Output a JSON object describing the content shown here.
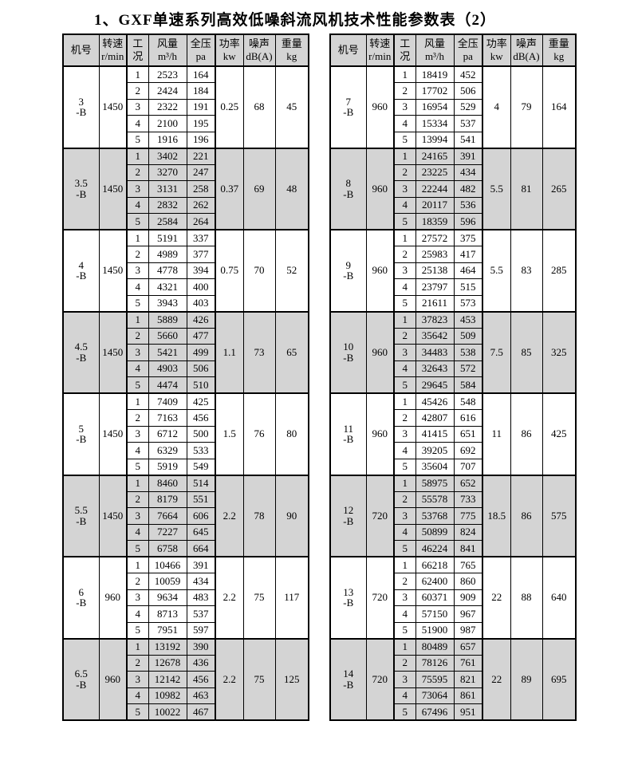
{
  "title": "1、GXF单速系列高效低噪斜流风机技术性能参数表（2）",
  "colors": {
    "page_bg": "#ffffff",
    "header_bg": "#d4d4d4",
    "shaded_group_bg": "#d4d4d4",
    "border": "#000000",
    "text": "#000000"
  },
  "columns": [
    {
      "key": "model",
      "lines": [
        "机号"
      ]
    },
    {
      "key": "speed",
      "lines": [
        "转速",
        "r/min"
      ]
    },
    {
      "key": "condition",
      "lines": [
        "工况"
      ]
    },
    {
      "key": "airflow",
      "lines": [
        "风量",
        "m³/h"
      ]
    },
    {
      "key": "pressure",
      "lines": [
        "全压",
        "pa"
      ]
    },
    {
      "key": "power",
      "lines": [
        "功率",
        "kw"
      ]
    },
    {
      "key": "noise",
      "lines": [
        "噪声",
        "dB(A)"
      ]
    },
    {
      "key": "weight",
      "lines": [
        "重量",
        "kg"
      ]
    }
  ],
  "tables": [
    {
      "name": "left",
      "groups": [
        {
          "model": "3",
          "model_suffix": "-B",
          "speed": "1450",
          "power": "0.25",
          "noise": "68",
          "weight": "45",
          "shaded": false,
          "rows": [
            {
              "condition": "1",
              "airflow": "2523",
              "pressure": "164"
            },
            {
              "condition": "2",
              "airflow": "2424",
              "pressure": "184"
            },
            {
              "condition": "3",
              "airflow": "2322",
              "pressure": "191"
            },
            {
              "condition": "4",
              "airflow": "2100",
              "pressure": "195"
            },
            {
              "condition": "5",
              "airflow": "1916",
              "pressure": "196"
            }
          ]
        },
        {
          "model": "3.5",
          "model_suffix": "-B",
          "speed": "1450",
          "power": "0.37",
          "noise": "69",
          "weight": "48",
          "shaded": true,
          "rows": [
            {
              "condition": "1",
              "airflow": "3402",
              "pressure": "221"
            },
            {
              "condition": "2",
              "airflow": "3270",
              "pressure": "247"
            },
            {
              "condition": "3",
              "airflow": "3131",
              "pressure": "258"
            },
            {
              "condition": "4",
              "airflow": "2832",
              "pressure": "262"
            },
            {
              "condition": "5",
              "airflow": "2584",
              "pressure": "264"
            }
          ]
        },
        {
          "model": "4",
          "model_suffix": "-B",
          "speed": "1450",
          "power": "0.75",
          "noise": "70",
          "weight": "52",
          "shaded": false,
          "rows": [
            {
              "condition": "1",
              "airflow": "5191",
              "pressure": "337"
            },
            {
              "condition": "2",
              "airflow": "4989",
              "pressure": "377"
            },
            {
              "condition": "3",
              "airflow": "4778",
              "pressure": "394"
            },
            {
              "condition": "4",
              "airflow": "4321",
              "pressure": "400"
            },
            {
              "condition": "5",
              "airflow": "3943",
              "pressure": "403"
            }
          ]
        },
        {
          "model": "4.5",
          "model_suffix": "-B",
          "speed": "1450",
          "power": "1.1",
          "noise": "73",
          "weight": "65",
          "shaded": true,
          "rows": [
            {
              "condition": "1",
              "airflow": "5889",
              "pressure": "426"
            },
            {
              "condition": "2",
              "airflow": "5660",
              "pressure": "477"
            },
            {
              "condition": "3",
              "airflow": "5421",
              "pressure": "499"
            },
            {
              "condition": "4",
              "airflow": "4903",
              "pressure": "506"
            },
            {
              "condition": "5",
              "airflow": "4474",
              "pressure": "510"
            }
          ]
        },
        {
          "model": "5",
          "model_suffix": "-B",
          "speed": "1450",
          "power": "1.5",
          "noise": "76",
          "weight": "80",
          "shaded": false,
          "rows": [
            {
              "condition": "1",
              "airflow": "7409",
              "pressure": "425"
            },
            {
              "condition": "2",
              "airflow": "7163",
              "pressure": "456"
            },
            {
              "condition": "3",
              "airflow": "6712",
              "pressure": "500"
            },
            {
              "condition": "4",
              "airflow": "6329",
              "pressure": "533"
            },
            {
              "condition": "5",
              "airflow": "5919",
              "pressure": "549"
            }
          ]
        },
        {
          "model": "5.5",
          "model_suffix": "-B",
          "speed": "1450",
          "power": "2.2",
          "noise": "78",
          "weight": "90",
          "shaded": true,
          "rows": [
            {
              "condition": "1",
              "airflow": "8460",
              "pressure": "514"
            },
            {
              "condition": "2",
              "airflow": "8179",
              "pressure": "551"
            },
            {
              "condition": "3",
              "airflow": "7664",
              "pressure": "606"
            },
            {
              "condition": "4",
              "airflow": "7227",
              "pressure": "645"
            },
            {
              "condition": "5",
              "airflow": "6758",
              "pressure": "664"
            }
          ]
        },
        {
          "model": "6",
          "model_suffix": "-B",
          "speed": "960",
          "power": "2.2",
          "noise": "75",
          "weight": "117",
          "shaded": false,
          "rows": [
            {
              "condition": "1",
              "airflow": "10466",
              "pressure": "391"
            },
            {
              "condition": "2",
              "airflow": "10059",
              "pressure": "434"
            },
            {
              "condition": "3",
              "airflow": "9634",
              "pressure": "483"
            },
            {
              "condition": "4",
              "airflow": "8713",
              "pressure": "537"
            },
            {
              "condition": "5",
              "airflow": "7951",
              "pressure": "597"
            }
          ]
        },
        {
          "model": "6.5",
          "model_suffix": "-B",
          "speed": "960",
          "power": "2.2",
          "noise": "75",
          "weight": "125",
          "shaded": true,
          "rows": [
            {
              "condition": "1",
              "airflow": "13192",
              "pressure": "390"
            },
            {
              "condition": "2",
              "airflow": "12678",
              "pressure": "436"
            },
            {
              "condition": "3",
              "airflow": "12142",
              "pressure": "456"
            },
            {
              "condition": "4",
              "airflow": "10982",
              "pressure": "463"
            },
            {
              "condition": "5",
              "airflow": "10022",
              "pressure": "467"
            }
          ]
        }
      ]
    },
    {
      "name": "right",
      "groups": [
        {
          "model": "7",
          "model_suffix": "-B",
          "speed": "960",
          "power": "4",
          "noise": "79",
          "weight": "164",
          "shaded": false,
          "rows": [
            {
              "condition": "1",
              "airflow": "18419",
              "pressure": "452"
            },
            {
              "condition": "2",
              "airflow": "17702",
              "pressure": "506"
            },
            {
              "condition": "3",
              "airflow": "16954",
              "pressure": "529"
            },
            {
              "condition": "4",
              "airflow": "15334",
              "pressure": "537"
            },
            {
              "condition": "5",
              "airflow": "13994",
              "pressure": "541"
            }
          ]
        },
        {
          "model": "8",
          "model_suffix": "-B",
          "speed": "960",
          "power": "5.5",
          "noise": "81",
          "weight": "265",
          "shaded": true,
          "rows": [
            {
              "condition": "1",
              "airflow": "24165",
              "pressure": "391"
            },
            {
              "condition": "2",
              "airflow": "23225",
              "pressure": "434"
            },
            {
              "condition": "3",
              "airflow": "22244",
              "pressure": "482"
            },
            {
              "condition": "4",
              "airflow": "20117",
              "pressure": "536"
            },
            {
              "condition": "5",
              "airflow": "18359",
              "pressure": "596"
            }
          ]
        },
        {
          "model": "9",
          "model_suffix": "-B",
          "speed": "960",
          "power": "5.5",
          "noise": "83",
          "weight": "285",
          "shaded": false,
          "rows": [
            {
              "condition": "1",
              "airflow": "27572",
              "pressure": "375"
            },
            {
              "condition": "2",
              "airflow": "25983",
              "pressure": "417"
            },
            {
              "condition": "3",
              "airflow": "25138",
              "pressure": "464"
            },
            {
              "condition": "4",
              "airflow": "23797",
              "pressure": "515"
            },
            {
              "condition": "5",
              "airflow": "21611",
              "pressure": "573"
            }
          ]
        },
        {
          "model": "10",
          "model_suffix": "-B",
          "speed": "960",
          "power": "7.5",
          "noise": "85",
          "weight": "325",
          "shaded": true,
          "rows": [
            {
              "condition": "1",
              "airflow": "37823",
              "pressure": "453"
            },
            {
              "condition": "2",
              "airflow": "35642",
              "pressure": "509"
            },
            {
              "condition": "3",
              "airflow": "34483",
              "pressure": "538"
            },
            {
              "condition": "4",
              "airflow": "32643",
              "pressure": "572"
            },
            {
              "condition": "5",
              "airflow": "29645",
              "pressure": "584"
            }
          ]
        },
        {
          "model": "11",
          "model_suffix": "-B",
          "speed": "960",
          "power": "11",
          "noise": "86",
          "weight": "425",
          "shaded": false,
          "rows": [
            {
              "condition": "1",
              "airflow": "45426",
              "pressure": "548"
            },
            {
              "condition": "2",
              "airflow": "42807",
              "pressure": "616"
            },
            {
              "condition": "3",
              "airflow": "41415",
              "pressure": "651"
            },
            {
              "condition": "4",
              "airflow": "39205",
              "pressure": "692"
            },
            {
              "condition": "5",
              "airflow": "35604",
              "pressure": "707"
            }
          ]
        },
        {
          "model": "12",
          "model_suffix": "-B",
          "speed": "720",
          "power": "18.5",
          "noise": "86",
          "weight": "575",
          "shaded": true,
          "rows": [
            {
              "condition": "1",
              "airflow": "58975",
              "pressure": "652"
            },
            {
              "condition": "2",
              "airflow": "55578",
              "pressure": "733"
            },
            {
              "condition": "3",
              "airflow": "53768",
              "pressure": "775"
            },
            {
              "condition": "4",
              "airflow": "50899",
              "pressure": "824"
            },
            {
              "condition": "5",
              "airflow": "46224",
              "pressure": "841"
            }
          ]
        },
        {
          "model": "13",
          "model_suffix": "-B",
          "speed": "720",
          "power": "22",
          "noise": "88",
          "weight": "640",
          "shaded": false,
          "rows": [
            {
              "condition": "1",
              "airflow": "66218",
              "pressure": "765"
            },
            {
              "condition": "2",
              "airflow": "62400",
              "pressure": "860"
            },
            {
              "condition": "3",
              "airflow": "60371",
              "pressure": "909"
            },
            {
              "condition": "4",
              "airflow": "57150",
              "pressure": "967"
            },
            {
              "condition": "5",
              "airflow": "51900",
              "pressure": "987"
            }
          ]
        },
        {
          "model": "14",
          "model_suffix": "-B",
          "speed": "720",
          "power": "22",
          "noise": "89",
          "weight": "695",
          "shaded": true,
          "rows": [
            {
              "condition": "1",
              "airflow": "80489",
              "pressure": "657"
            },
            {
              "condition": "2",
              "airflow": "78126",
              "pressure": "761"
            },
            {
              "condition": "3",
              "airflow": "75595",
              "pressure": "821"
            },
            {
              "condition": "4",
              "airflow": "73064",
              "pressure": "861"
            },
            {
              "condition": "5",
              "airflow": "67496",
              "pressure": "951"
            }
          ]
        }
      ]
    }
  ]
}
